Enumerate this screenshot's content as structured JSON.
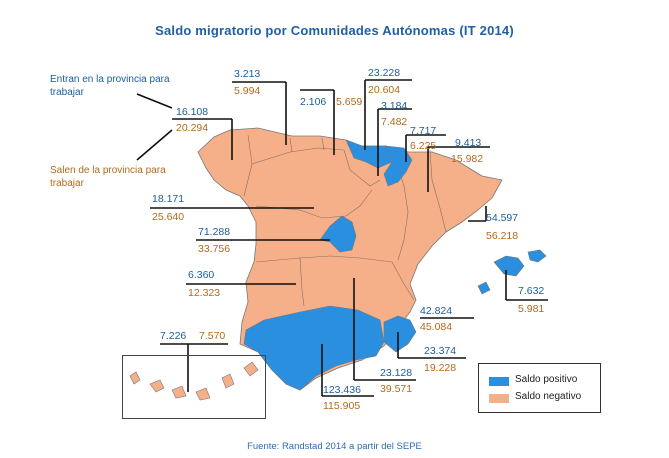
{
  "title": "Saldo migratorio por Comunidades Autónomas (IT 2014)",
  "source": "Fuente: Randstad 2014 a partir del SEPE",
  "legend_notes": {
    "in": "Entran en la provincia para trabajar",
    "out": "Salen de la provincia para trabajar"
  },
  "legend": {
    "positive": "Saldo positivo",
    "negative": "Saldo negativo"
  },
  "colors": {
    "positive": "#2b8fe0",
    "negative": "#f5b08a",
    "border": "#777777",
    "in_text": "#1a5d9b",
    "out_text": "#b26a1a"
  },
  "regions": [
    {
      "name": "Galicia",
      "in": "16.108",
      "out": "20.294",
      "saldo": "negativo"
    },
    {
      "name": "Asturias",
      "in": "3.213",
      "out": "5.994",
      "saldo": "negativo"
    },
    {
      "name": "Cantabria",
      "in": "2.106",
      "out": "5.659",
      "saldo": "negativo"
    },
    {
      "name": "País Vasco",
      "in": "23.228",
      "out": "20.604",
      "saldo": "positivo"
    },
    {
      "name": "La Rioja",
      "in": "3.184",
      "out": "7.482",
      "saldo": "negativo"
    },
    {
      "name": "Navarra",
      "in": "7.717",
      "out": "6.225",
      "saldo": "positivo"
    },
    {
      "name": "Aragón",
      "in": "9.413",
      "out": "15.982",
      "saldo": "negativo"
    },
    {
      "name": "Cataluña",
      "in": "54.597",
      "out": "56.218",
      "saldo": "negativo"
    },
    {
      "name": "Castilla y León",
      "in": "18.171",
      "out": "25.640",
      "saldo": "negativo"
    },
    {
      "name": "Madrid",
      "in": "71.288",
      "out": "33.756",
      "saldo": "positivo"
    },
    {
      "name": "Extremadura",
      "in": "6.360",
      "out": "12.323",
      "saldo": "negativo"
    },
    {
      "name": "Baleares",
      "in": "7.632",
      "out": "5.981",
      "saldo": "positivo"
    },
    {
      "name": "Comunidad Valenciana",
      "in": "42.824",
      "out": "45.084",
      "saldo": "negativo"
    },
    {
      "name": "Murcia",
      "in": "23.374",
      "out": "19.228",
      "saldo": "positivo"
    },
    {
      "name": "Castilla-La Mancha",
      "in": "23.128",
      "out": "39.571",
      "saldo": "negativo"
    },
    {
      "name": "Andalucía",
      "in": "123.436",
      "out": "115.905",
      "saldo": "positivo"
    },
    {
      "name": "Canarias",
      "in": "7.226",
      "out": "7.570",
      "saldo": "negativo"
    }
  ]
}
